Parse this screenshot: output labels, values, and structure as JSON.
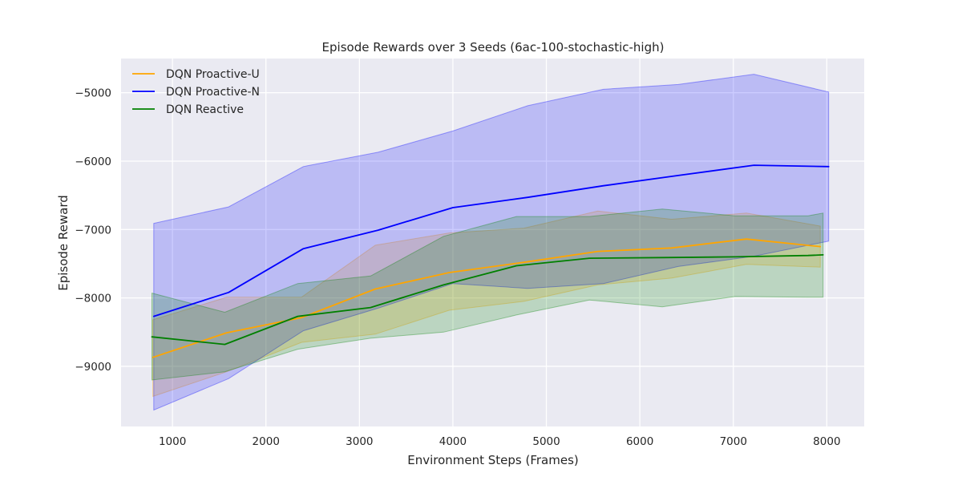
{
  "chart_data": {
    "type": "line",
    "title": "Episode Rewards over 3 Seeds (6ac-100-stochastic-high)",
    "xlabel": "Environment Steps (Frames)",
    "ylabel": "Episode Reward",
    "xlim": [
      450,
      8400
    ],
    "ylim": [
      -9880,
      -4500
    ],
    "xticks": [
      1000,
      2000,
      3000,
      4000,
      5000,
      6000,
      7000,
      8000
    ],
    "yticks": [
      -9000,
      -8000,
      -7000,
      -6000,
      -5000
    ],
    "xtick_labels": [
      "1000",
      "2000",
      "3000",
      "4000",
      "5000",
      "6000",
      "7000",
      "8000"
    ],
    "ytick_labels": [
      "−9000",
      "−8000",
      "−7000",
      "−6000",
      "−5000"
    ],
    "grid": true,
    "legend_position": "top-left",
    "series": [
      {
        "name": "DQN Proactive-U",
        "color": "#ffa500",
        "x": [
          790,
          1580,
          2380,
          3170,
          3960,
          4760,
          5550,
          6340,
          7140,
          7930
        ],
        "mean": [
          -8870,
          -8510,
          -8290,
          -7870,
          -7630,
          -7480,
          -7320,
          -7270,
          -7140,
          -7250
        ],
        "lower": [
          -9440,
          -9080,
          -8650,
          -8530,
          -8180,
          -8050,
          -7810,
          -7710,
          -7510,
          -7550
        ],
        "upper": [
          -8320,
          -7990,
          -7990,
          -7230,
          -7050,
          -6980,
          -6730,
          -6850,
          -6760,
          -6950
        ]
      },
      {
        "name": "DQN Proactive-N",
        "color": "#0000ff",
        "x": [
          800,
          1600,
          2400,
          3200,
          4000,
          4800,
          5610,
          6410,
          7220,
          8020
        ],
        "mean": [
          -8270,
          -7920,
          -7280,
          -7010,
          -6680,
          -6530,
          -6360,
          -6210,
          -6060,
          -6080
        ],
        "lower": [
          -9640,
          -9180,
          -8480,
          -8150,
          -7790,
          -7860,
          -7790,
          -7540,
          -7390,
          -7170
        ],
        "upper": [
          -6910,
          -6670,
          -6080,
          -5870,
          -5560,
          -5190,
          -4950,
          -4880,
          -4730,
          -4990
        ]
      },
      {
        "name": "DQN Reactive",
        "color": "#008000",
        "x": [
          780,
          1560,
          2340,
          3120,
          3900,
          4680,
          5460,
          6240,
          7020,
          7800,
          7960
        ],
        "mean": [
          -8570,
          -8680,
          -8270,
          -8140,
          -7810,
          -7530,
          -7420,
          -7410,
          -7400,
          -7380,
          -7370
        ],
        "lower": [
          -9200,
          -9080,
          -8750,
          -8590,
          -8500,
          -8250,
          -8030,
          -8130,
          -7980,
          -7990,
          -7990
        ],
        "upper": [
          -7930,
          -8210,
          -7790,
          -7680,
          -7100,
          -6810,
          -6810,
          -6700,
          -6800,
          -6800,
          -6760
        ]
      }
    ]
  }
}
